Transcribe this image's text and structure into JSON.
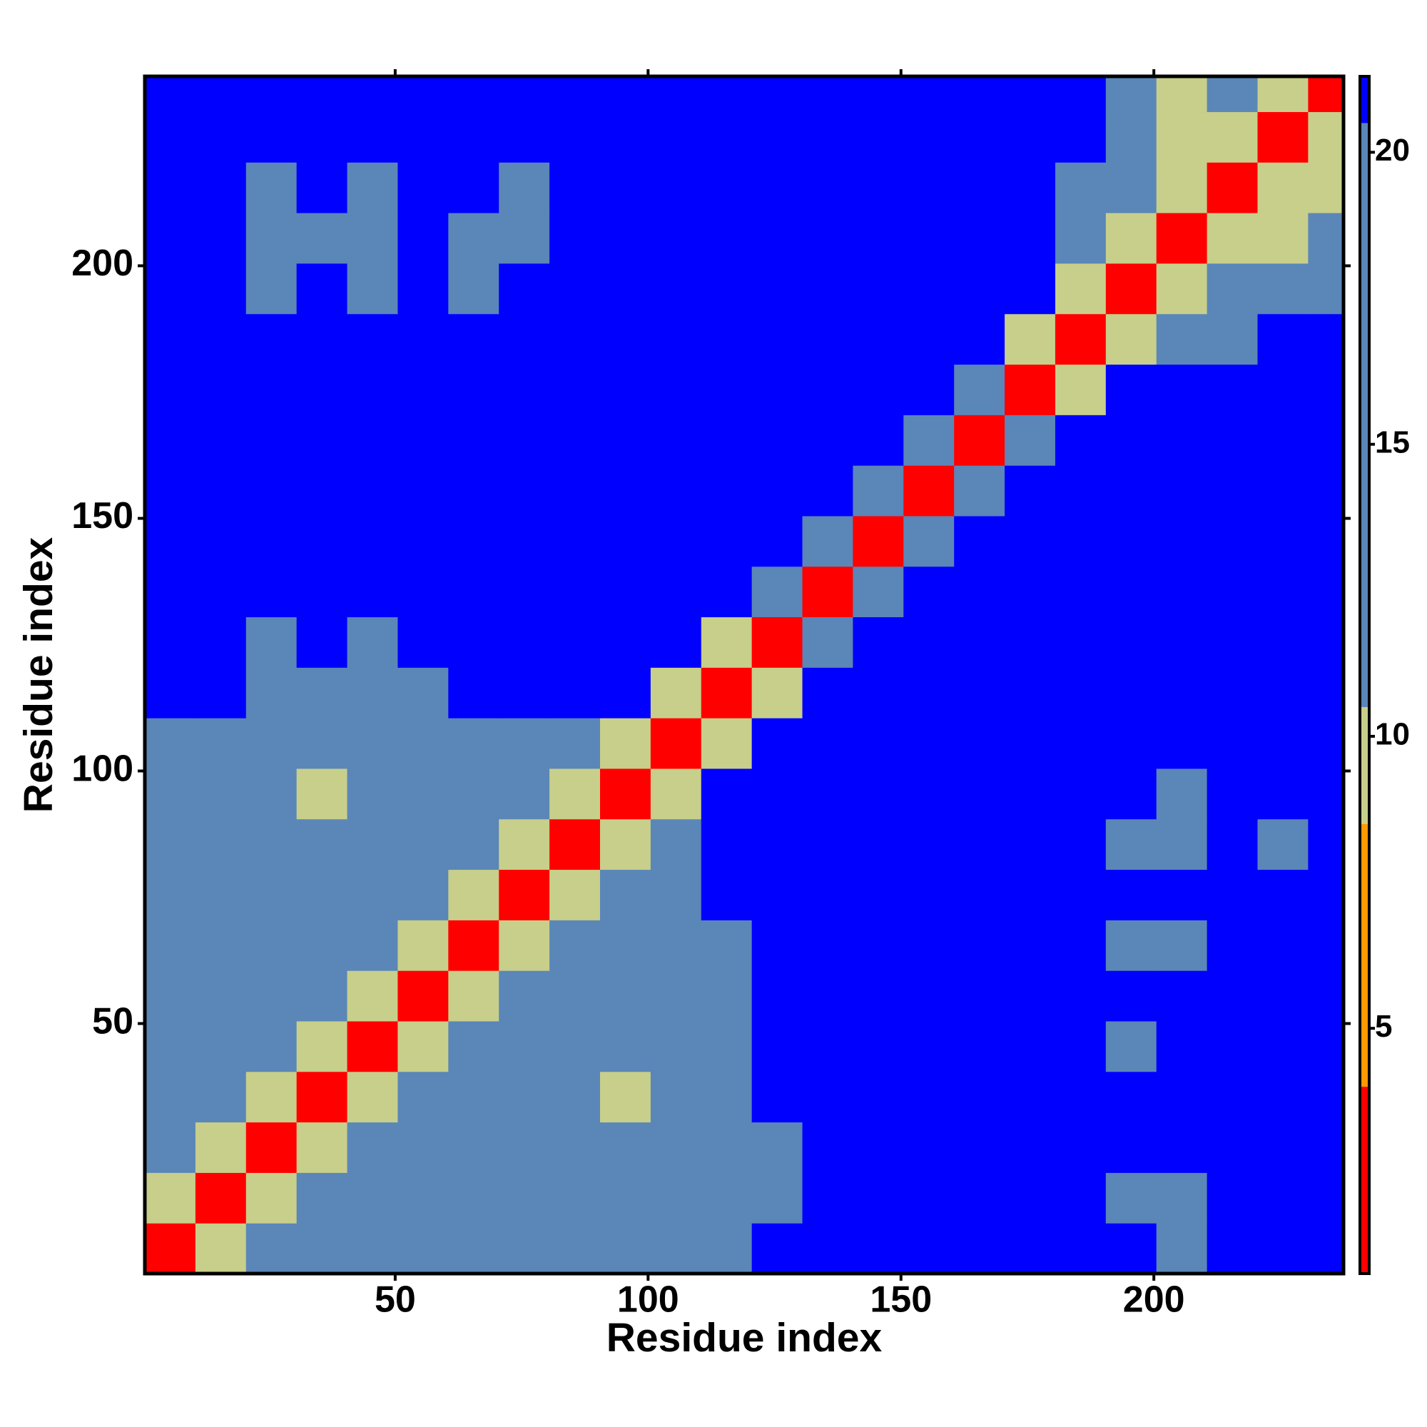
{
  "chart_data": {
    "type": "heatmap",
    "xlabel": "Residue index",
    "ylabel": "Residue index",
    "xlim": [
      0.5,
      237.5
    ],
    "ylim": [
      0.5,
      237.5
    ],
    "xticks": [
      50,
      100,
      150,
      200
    ],
    "yticks": [
      50,
      100,
      150,
      200
    ],
    "xbins": [
      0.5,
      10.5,
      20.5,
      30.5,
      40.5,
      50.5,
      60.5,
      70.5,
      80.5,
      90.5,
      100.5,
      110.5,
      120.5,
      130.5,
      140.5,
      150.5,
      160.5,
      170.5,
      180.5,
      190.5,
      200.5,
      210.5,
      220.5,
      230.5,
      237.5
    ],
    "ybins": [
      0.5,
      10.5,
      20.5,
      30.5,
      40.5,
      50.5,
      60.5,
      70.5,
      80.5,
      90.5,
      100.5,
      110.5,
      120.5,
      130.5,
      140.5,
      150.5,
      160.5,
      170.5,
      180.5,
      190.5,
      200.5,
      210.5,
      220.5,
      230.5,
      237.5
    ],
    "z": [
      [
        4,
        9,
        14,
        14,
        14,
        14,
        14,
        14,
        14,
        14,
        14,
        18,
        21,
        21,
        21,
        21,
        21,
        21,
        21,
        21,
        20,
        21,
        21,
        21
      ],
      [
        9,
        4,
        9,
        14,
        14,
        14,
        14,
        14,
        14,
        14,
        14,
        18,
        18,
        21,
        21,
        21,
        21,
        21,
        21,
        20,
        20,
        21,
        21,
        21
      ],
      [
        14,
        9,
        4,
        9,
        14,
        14,
        14,
        14,
        14,
        14,
        14,
        18,
        18,
        21,
        21,
        21,
        21,
        21,
        21,
        21,
        21,
        21,
        21,
        21
      ],
      [
        14,
        14,
        9,
        4,
        9,
        14,
        14,
        14,
        14,
        10,
        14,
        18,
        21,
        21,
        21,
        21,
        21,
        21,
        21,
        21,
        21,
        21,
        21,
        21
      ],
      [
        14,
        14,
        14,
        9,
        4,
        9,
        14,
        14,
        14,
        14,
        14,
        18,
        21,
        21,
        21,
        21,
        21,
        21,
        21,
        20,
        21,
        21,
        21,
        21
      ],
      [
        14,
        14,
        14,
        14,
        9,
        4,
        9,
        14,
        14,
        14,
        14,
        18,
        21,
        21,
        21,
        21,
        21,
        21,
        21,
        21,
        21,
        21,
        21,
        21
      ],
      [
        14,
        14,
        14,
        14,
        14,
        9,
        4,
        9,
        14,
        14,
        14,
        18,
        21,
        21,
        21,
        21,
        21,
        21,
        21,
        20,
        20,
        21,
        21,
        21
      ],
      [
        14,
        14,
        14,
        14,
        14,
        14,
        9,
        4,
        9,
        14,
        14,
        21,
        21,
        21,
        21,
        21,
        21,
        21,
        21,
        21,
        21,
        21,
        21,
        21
      ],
      [
        14,
        14,
        14,
        14,
        14,
        14,
        14,
        9,
        4,
        9,
        14,
        21,
        21,
        21,
        21,
        21,
        21,
        21,
        21,
        20,
        20,
        21,
        20,
        21
      ],
      [
        14,
        14,
        14,
        10,
        14,
        14,
        14,
        14,
        9,
        4,
        9,
        21,
        21,
        21,
        21,
        21,
        21,
        21,
        21,
        21,
        20,
        21,
        21,
        21
      ],
      [
        14,
        14,
        14,
        14,
        14,
        14,
        14,
        14,
        14,
        9,
        4,
        9,
        21,
        21,
        21,
        21,
        21,
        21,
        21,
        21,
        21,
        21,
        21,
        21
      ],
      [
        21,
        21,
        20,
        20,
        20,
        20,
        21,
        21,
        21,
        21,
        9,
        4,
        9,
        21,
        21,
        21,
        21,
        21,
        21,
        21,
        21,
        21,
        21,
        21
      ],
      [
        21,
        21,
        20,
        21,
        20,
        21,
        21,
        21,
        21,
        21,
        21,
        9,
        4,
        12,
        21,
        21,
        21,
        21,
        21,
        21,
        21,
        21,
        21,
        21
      ],
      [
        21,
        21,
        21,
        21,
        21,
        21,
        21,
        21,
        21,
        21,
        21,
        21,
        12,
        4,
        12,
        21,
        21,
        21,
        21,
        21,
        21,
        21,
        21,
        21
      ],
      [
        21,
        21,
        21,
        21,
        21,
        21,
        21,
        21,
        21,
        21,
        21,
        21,
        21,
        12,
        4,
        12,
        21,
        21,
        21,
        21,
        21,
        21,
        21,
        21
      ],
      [
        21,
        21,
        21,
        21,
        21,
        21,
        21,
        21,
        21,
        21,
        21,
        21,
        21,
        21,
        12,
        4,
        12,
        21,
        21,
        21,
        21,
        21,
        21,
        21
      ],
      [
        21,
        21,
        21,
        21,
        21,
        21,
        21,
        21,
        21,
        21,
        21,
        21,
        21,
        21,
        21,
        12,
        4,
        12,
        21,
        21,
        21,
        21,
        21,
        21
      ],
      [
        21,
        21,
        21,
        21,
        21,
        21,
        21,
        21,
        21,
        21,
        21,
        21,
        21,
        21,
        21,
        21,
        12,
        4,
        10,
        21,
        21,
        21,
        21,
        21
      ],
      [
        21,
        21,
        21,
        21,
        21,
        21,
        21,
        21,
        21,
        21,
        21,
        21,
        21,
        21,
        21,
        21,
        21,
        10,
        4,
        9,
        14,
        16,
        21,
        21
      ],
      [
        21,
        21,
        20,
        21,
        20,
        21,
        20,
        21,
        21,
        21,
        21,
        21,
        21,
        21,
        21,
        21,
        21,
        21,
        9,
        4,
        9,
        14,
        14,
        16
      ],
      [
        21,
        21,
        20,
        20,
        20,
        21,
        20,
        20,
        21,
        21,
        21,
        21,
        21,
        21,
        21,
        21,
        21,
        21,
        14,
        9,
        4,
        9,
        10,
        14
      ],
      [
        21,
        21,
        20,
        21,
        20,
        21,
        21,
        20,
        21,
        21,
        21,
        21,
        21,
        21,
        21,
        21,
        21,
        21,
        16,
        14,
        9,
        4,
        9,
        10
      ],
      [
        21,
        21,
        21,
        21,
        21,
        21,
        21,
        21,
        21,
        21,
        21,
        21,
        21,
        21,
        21,
        21,
        21,
        21,
        21,
        14,
        10,
        9,
        4,
        9
      ],
      [
        21,
        21,
        21,
        21,
        21,
        21,
        21,
        21,
        21,
        21,
        21,
        21,
        21,
        21,
        21,
        21,
        21,
        21,
        21,
        16,
        10,
        14,
        9,
        4
      ]
    ],
    "colorbar": {
      "lim": [
        0.8,
        21.3
      ],
      "ticks": [
        5,
        10,
        15,
        20
      ],
      "bands": [
        {
          "from": 0.8,
          "to": 4,
          "color": "#ff0000"
        },
        {
          "from": 4,
          "to": 8.5,
          "color": "#ff9900"
        },
        {
          "from": 8.5,
          "to": 10.5,
          "color": "#c8cf8a"
        },
        {
          "from": 10.5,
          "to": 20.5,
          "color": "#5b86b8"
        },
        {
          "from": 20.5,
          "to": 21.3,
          "color": "#0000ff"
        }
      ]
    }
  }
}
